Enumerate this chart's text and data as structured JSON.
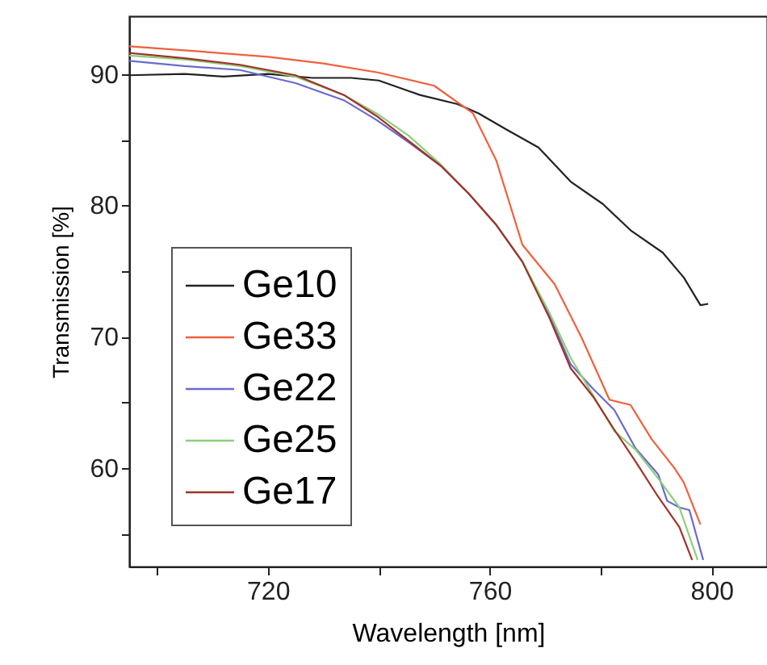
{
  "chart_data": {
    "type": "line",
    "xlabel": "Wavelength [nm]",
    "ylabel": "Transmission [%]",
    "xlim": [
      695,
      810
    ],
    "ylim": [
      52.5,
      94.4
    ],
    "xticks": [
      {
        "value": 700,
        "label": null
      },
      720,
      {
        "value": 740,
        "label": null
      },
      760,
      {
        "value": 780,
        "label": null
      },
      800
    ],
    "yticks": [
      {
        "value": 55,
        "label": null
      },
      60,
      {
        "value": 65,
        "label": null
      },
      70,
      {
        "value": 75,
        "label": null
      },
      80,
      {
        "value": 85,
        "label": null
      },
      90
    ],
    "grid": false,
    "legend": "bottom left",
    "marker": "none",
    "line_style": "solid",
    "series": [
      {
        "name": "Ge10",
        "color": "#222222",
        "x": [
          695,
          705,
          712,
          720,
          728,
          735,
          740,
          747.4,
          754.2,
          758,
          762.9,
          768.8,
          774.6,
          780.4,
          785.4,
          791.2,
          795,
          798,
          799.4
        ],
        "values": [
          89.9,
          90.0,
          89.8,
          90.0,
          89.7,
          89.7,
          89.5,
          88.4,
          87.7,
          87.0,
          85.8,
          84.4,
          81.8,
          80.1,
          78.1,
          76.4,
          74.5,
          72.4,
          72.5
        ]
      },
      {
        "name": "Ge33",
        "color": "#f0603c",
        "x": [
          695,
          705,
          720,
          730,
          740,
          750,
          757,
          761.2,
          765.9,
          771.7,
          776.6,
          781.6,
          785.4,
          789.2,
          793.3,
          795,
          798
        ],
        "values": [
          92.1,
          91.8,
          91.3,
          90.8,
          90.1,
          89.1,
          87.0,
          83.4,
          77.0,
          74.0,
          69.9,
          65.2,
          64.8,
          62.2,
          60.0,
          58.9,
          55.7
        ]
      },
      {
        "name": "Ge22",
        "color": "#6a6acd",
        "x": [
          695,
          705,
          715,
          725,
          733.7,
          739.6,
          745.4,
          751.2,
          756.2,
          761.2,
          765.9,
          770.8,
          774.6,
          778.7,
          782.5,
          786.3,
          790.4,
          792,
          794.2,
          796,
          798.5
        ],
        "values": [
          91.0,
          90.6,
          90.3,
          89.3,
          88.0,
          86.5,
          84.8,
          83.0,
          80.9,
          78.5,
          75.7,
          71.6,
          67.9,
          66.0,
          64.4,
          61.5,
          59.5,
          57.5,
          57.0,
          56.8,
          53.0
        ]
      },
      {
        "name": "Ge25",
        "color": "#8ccf7a",
        "x": [
          695,
          705,
          715,
          725,
          733.7,
          739.6,
          745.4,
          751.2,
          756.2,
          761.2,
          765.9,
          770.8,
          774.6,
          778.7,
          782.5,
          786.3,
          790.4,
          794.2,
          797.5
        ],
        "values": [
          91.4,
          91.1,
          90.6,
          89.8,
          88.4,
          87.0,
          85.3,
          83.1,
          80.9,
          78.5,
          75.7,
          71.8,
          68.4,
          65.5,
          62.8,
          61.4,
          59.2,
          57.0,
          53.0
        ]
      },
      {
        "name": "Ge17",
        "color": "#a0322a",
        "x": [
          695,
          705,
          715,
          725,
          733.7,
          739.6,
          745.4,
          751.2,
          756.2,
          761.2,
          765.9,
          770.8,
          774.6,
          778.7,
          782.5,
          786.3,
          790.4,
          794.2,
          796.5
        ],
        "values": [
          91.6,
          91.2,
          90.7,
          89.9,
          88.4,
          86.8,
          84.9,
          83.0,
          80.9,
          78.5,
          75.7,
          71.4,
          67.6,
          65.4,
          62.9,
          60.5,
          57.8,
          55.5,
          53.0
        ]
      }
    ]
  }
}
